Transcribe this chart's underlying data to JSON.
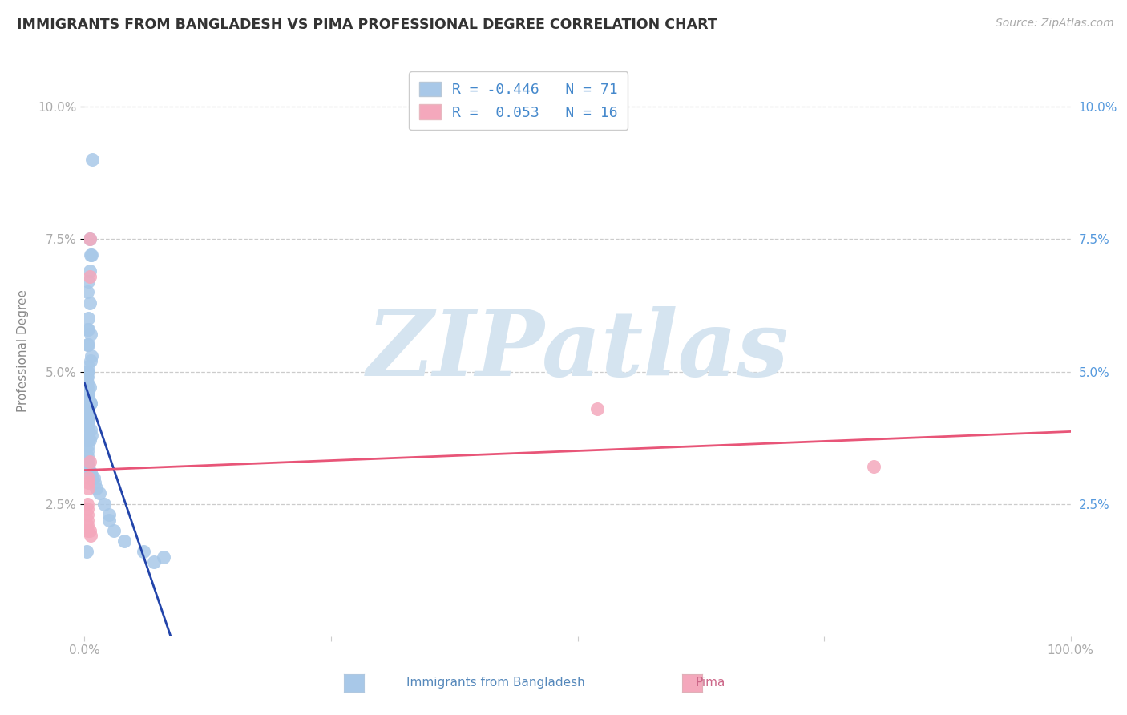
{
  "title": "IMMIGRANTS FROM BANGLADESH VS PIMA PROFESSIONAL DEGREE CORRELATION CHART",
  "source": "Source: ZipAtlas.com",
  "ylabel": "Professional Degree",
  "ytick_values": [
    0.025,
    0.05,
    0.075,
    0.1
  ],
  "ytick_labels_left": [
    "2.5%",
    "5.0%",
    "7.5%",
    "10.0%"
  ],
  "ytick_labels_right": [
    "2.5%",
    "5.0%",
    "7.5%",
    "10.0%"
  ],
  "xlim": [
    0.0,
    1.0
  ],
  "ylim": [
    0.0,
    0.108
  ],
  "legend1_R": "-0.446",
  "legend1_N": "71",
  "legend2_R": "0.053",
  "legend2_N": "16",
  "blue_color": "#a8c8e8",
  "blue_line_color": "#2244aa",
  "pink_color": "#f4a8bc",
  "pink_line_color": "#e85578",
  "background_color": "#ffffff",
  "watermark": "ZIPatlas",
  "watermark_color": "#d5e4f0",
  "blue_scatter_x": [
    0.008,
    0.005,
    0.006,
    0.007,
    0.005,
    0.004,
    0.003,
    0.005,
    0.004,
    0.004,
    0.003,
    0.006,
    0.003,
    0.004,
    0.007,
    0.006,
    0.004,
    0.003,
    0.003,
    0.003,
    0.003,
    0.002,
    0.003,
    0.002,
    0.002,
    0.003,
    0.005,
    0.004,
    0.003,
    0.004,
    0.003,
    0.006,
    0.006,
    0.005,
    0.003,
    0.003,
    0.003,
    0.002,
    0.004,
    0.004,
    0.003,
    0.004,
    0.003,
    0.006,
    0.007,
    0.004,
    0.005,
    0.003,
    0.003,
    0.004,
    0.003,
    0.003,
    0.002,
    0.004,
    0.004,
    0.003,
    0.006,
    0.008,
    0.009,
    0.01,
    0.012,
    0.015,
    0.02,
    0.025,
    0.025,
    0.03,
    0.04,
    0.06,
    0.08,
    0.07,
    0.002
  ],
  "blue_scatter_y": [
    0.09,
    0.075,
    0.072,
    0.072,
    0.069,
    0.067,
    0.065,
    0.063,
    0.06,
    0.058,
    0.058,
    0.057,
    0.055,
    0.055,
    0.053,
    0.052,
    0.051,
    0.05,
    0.05,
    0.05,
    0.049,
    0.049,
    0.048,
    0.048,
    0.047,
    0.047,
    0.047,
    0.046,
    0.046,
    0.045,
    0.045,
    0.044,
    0.044,
    0.044,
    0.043,
    0.043,
    0.042,
    0.042,
    0.041,
    0.041,
    0.04,
    0.04,
    0.039,
    0.039,
    0.038,
    0.038,
    0.037,
    0.037,
    0.037,
    0.036,
    0.035,
    0.034,
    0.033,
    0.033,
    0.032,
    0.031,
    0.031,
    0.03,
    0.03,
    0.029,
    0.028,
    0.027,
    0.025,
    0.023,
    0.022,
    0.02,
    0.018,
    0.016,
    0.015,
    0.014,
    0.016
  ],
  "pink_scatter_x": [
    0.003,
    0.003,
    0.003,
    0.003,
    0.003,
    0.003,
    0.004,
    0.004,
    0.004,
    0.005,
    0.005,
    0.005,
    0.005,
    0.006,
    0.52,
    0.8
  ],
  "pink_scatter_y": [
    0.025,
    0.024,
    0.023,
    0.022,
    0.021,
    0.02,
    0.03,
    0.029,
    0.028,
    0.075,
    0.068,
    0.033,
    0.02,
    0.019,
    0.043,
    0.032
  ],
  "xtick_positions": [
    0.0,
    0.25,
    0.5,
    0.75,
    1.0
  ],
  "xtick_labels": [
    "0.0%",
    "",
    "",
    "",
    "100.0%"
  ]
}
